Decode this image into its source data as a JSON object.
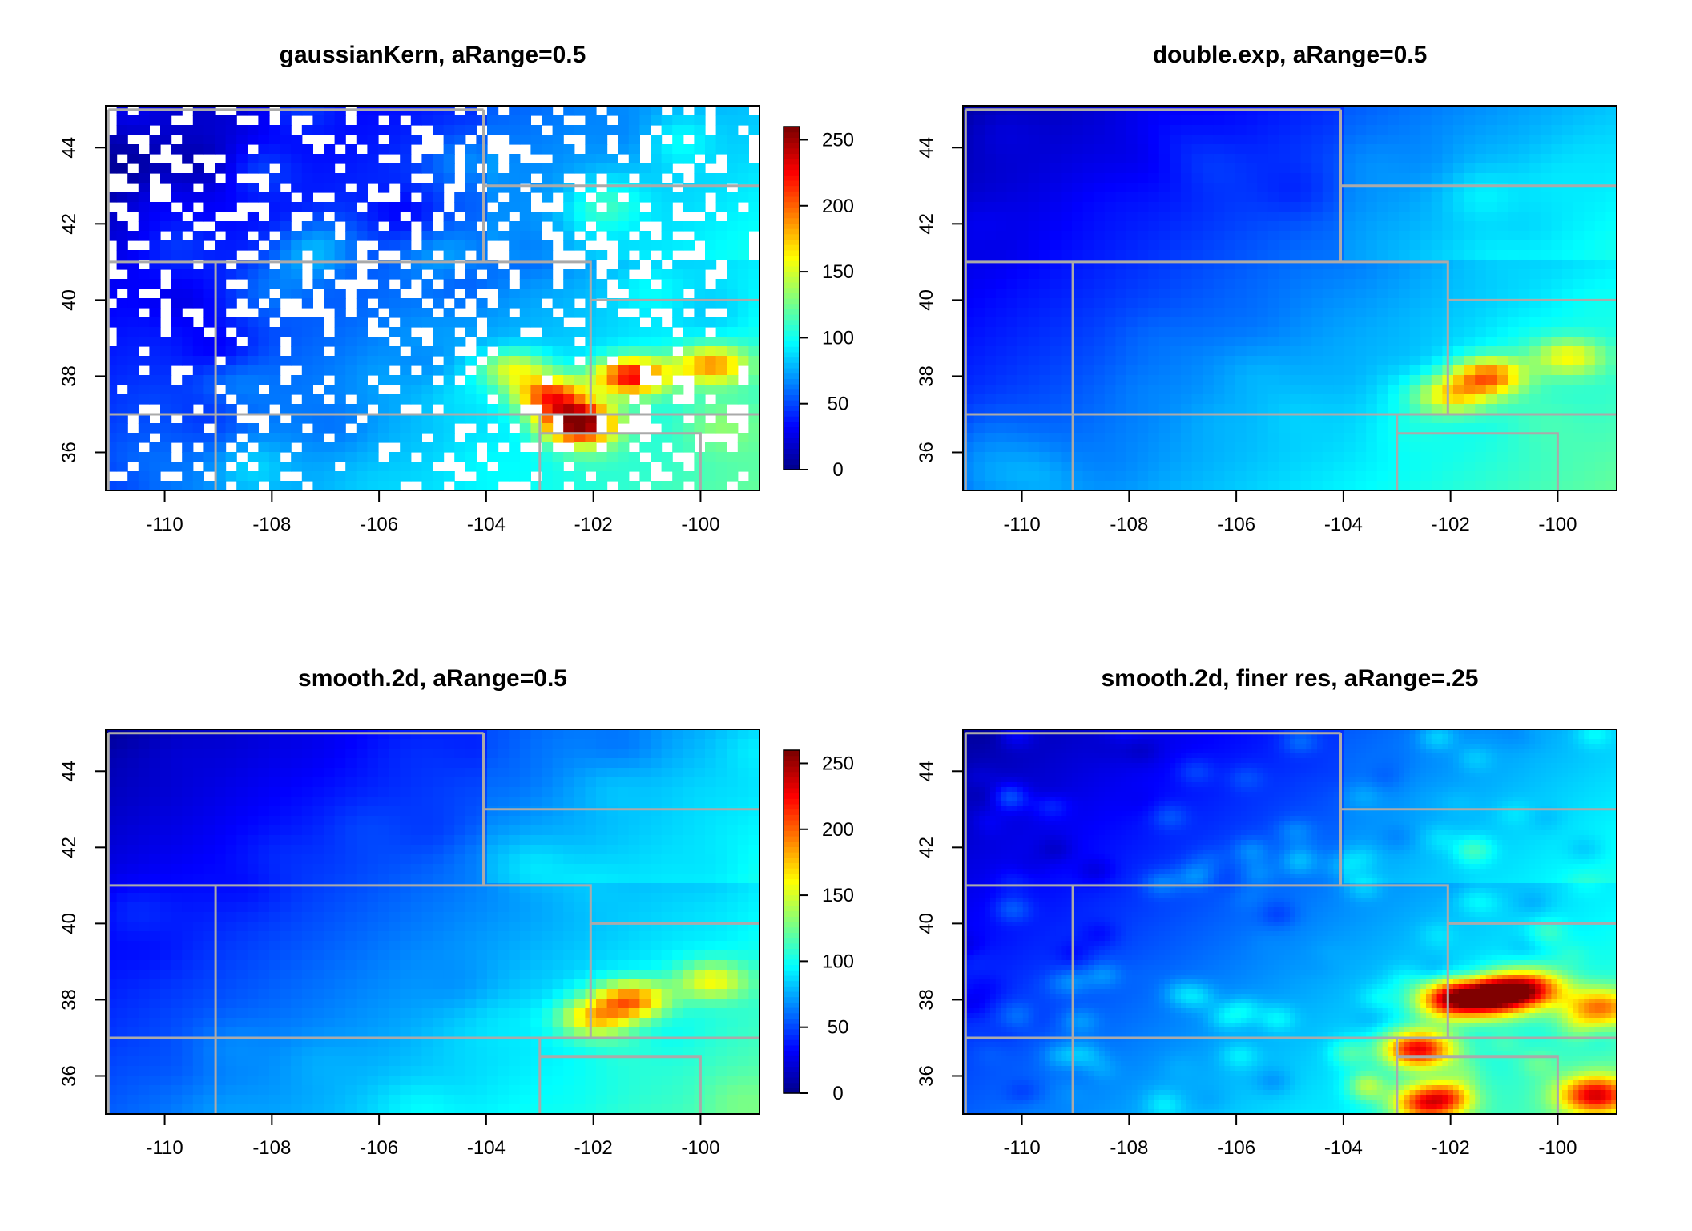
{
  "chart_data": [
    {
      "type": "heatmap",
      "title": "gaussianKern, aRange=0.5",
      "xlabel": "",
      "ylabel": "",
      "xlim": [
        -111.1,
        -98.9
      ],
      "ylim": [
        35.0,
        45.1
      ],
      "x_ticks": [
        -110,
        -108,
        -106,
        -104,
        -102,
        -100
      ],
      "y_ticks": [
        36,
        38,
        40,
        42,
        44
      ],
      "colorbar": {
        "ticks": [
          0,
          50,
          100,
          150,
          200,
          250
        ],
        "range": [
          0,
          260
        ]
      },
      "has_missing_cells": true,
      "grid_resolution": [
        60,
        40
      ],
      "hotspots": [
        {
          "lon": -101.3,
          "lat": 38.0,
          "value": 215
        },
        {
          "lon": -102.3,
          "lat": 36.8,
          "value": 245
        },
        {
          "lon": -102.8,
          "lat": 37.5,
          "value": 200
        },
        {
          "lon": -99.8,
          "lat": 38.3,
          "value": 170
        },
        {
          "lon": -103.5,
          "lat": 38.2,
          "value": 150
        }
      ]
    },
    {
      "type": "heatmap",
      "title": "double.exp, aRange=0.5",
      "xlabel": "",
      "ylabel": "",
      "xlim": [
        -111.1,
        -98.9
      ],
      "ylim": [
        35.0,
        45.1
      ],
      "x_ticks": [
        -110,
        -108,
        -106,
        -104,
        -102,
        -100
      ],
      "y_ticks": [
        36,
        38,
        40,
        42,
        44
      ],
      "colorbar": null,
      "has_missing_cells": false,
      "grid_resolution": [
        60,
        40
      ],
      "hotspots": [
        {
          "lon": -101.3,
          "lat": 38.0,
          "value": 180
        },
        {
          "lon": -102.0,
          "lat": 37.5,
          "value": 150
        },
        {
          "lon": -99.8,
          "lat": 38.5,
          "value": 140
        }
      ]
    },
    {
      "type": "heatmap",
      "title": "smooth.2d, aRange=0.5",
      "xlabel": "",
      "ylabel": "",
      "xlim": [
        -111.1,
        -98.9
      ],
      "ylim": [
        35.0,
        45.1
      ],
      "x_ticks": [
        -110,
        -108,
        -106,
        -104,
        -102,
        -100
      ],
      "y_ticks": [
        36,
        38,
        40,
        42,
        44
      ],
      "colorbar": {
        "ticks": [
          0,
          50,
          100,
          150,
          200,
          250
        ],
        "range": [
          0,
          260
        ]
      },
      "has_missing_cells": false,
      "grid_resolution": [
        60,
        40
      ],
      "hotspots": [
        {
          "lon": -101.3,
          "lat": 38.0,
          "value": 180
        },
        {
          "lon": -102.0,
          "lat": 37.5,
          "value": 150
        },
        {
          "lon": -99.8,
          "lat": 38.5,
          "value": 140
        }
      ]
    },
    {
      "type": "heatmap",
      "title": "smooth.2d, finer res, aRange=.25",
      "xlabel": "",
      "ylabel": "",
      "xlim": [
        -111.1,
        -98.9
      ],
      "ylim": [
        35.0,
        45.1
      ],
      "x_ticks": [
        -110,
        -108,
        -106,
        -104,
        -102,
        -100
      ],
      "y_ticks": [
        36,
        38,
        40,
        42,
        44
      ],
      "colorbar": null,
      "has_missing_cells": false,
      "grid_resolution": [
        120,
        80
      ],
      "hotspots": [
        {
          "lon": -101.2,
          "lat": 38.1,
          "value": 240
        },
        {
          "lon": -102.0,
          "lat": 38.0,
          "value": 215
        },
        {
          "lon": -102.6,
          "lat": 36.7,
          "value": 220
        },
        {
          "lon": -102.4,
          "lat": 35.3,
          "value": 210
        },
        {
          "lon": -99.3,
          "lat": 35.5,
          "value": 200
        },
        {
          "lon": -100.5,
          "lat": 38.3,
          "value": 190
        },
        {
          "lon": -99.2,
          "lat": 37.8,
          "value": 170
        }
      ]
    }
  ],
  "boundaries": {
    "color": "#aaaaaa",
    "polylines": [
      [
        [
          -111.05,
          45.0
        ],
        [
          -104.05,
          45.0
        ]
      ],
      [
        [
          -111.05,
          45.0
        ],
        [
          -111.05,
          35.0
        ]
      ],
      [
        [
          -111.05,
          41.0
        ],
        [
          -104.05,
          41.0
        ]
      ],
      [
        [
          -104.05,
          45.0
        ],
        [
          -104.05,
          41.0
        ]
      ],
      [
        [
          -104.05,
          43.0
        ],
        [
          -98.9,
          43.0
        ]
      ],
      [
        [
          -109.05,
          41.0
        ],
        [
          -109.05,
          35.0
        ]
      ],
      [
        [
          -104.05,
          41.0
        ],
        [
          -102.05,
          41.0
        ],
        [
          -102.05,
          40.0
        ],
        [
          -98.9,
          40.0
        ]
      ],
      [
        [
          -102.05,
          40.0
        ],
        [
          -102.05,
          37.0
        ]
      ],
      [
        [
          -111.05,
          37.0
        ],
        [
          -98.9,
          37.0
        ]
      ],
      [
        [
          -103.0,
          37.0
        ],
        [
          -103.0,
          35.0
        ]
      ],
      [
        [
          -103.0,
          36.5
        ],
        [
          -100.0,
          36.5
        ],
        [
          -100.0,
          35.0
        ]
      ]
    ]
  }
}
